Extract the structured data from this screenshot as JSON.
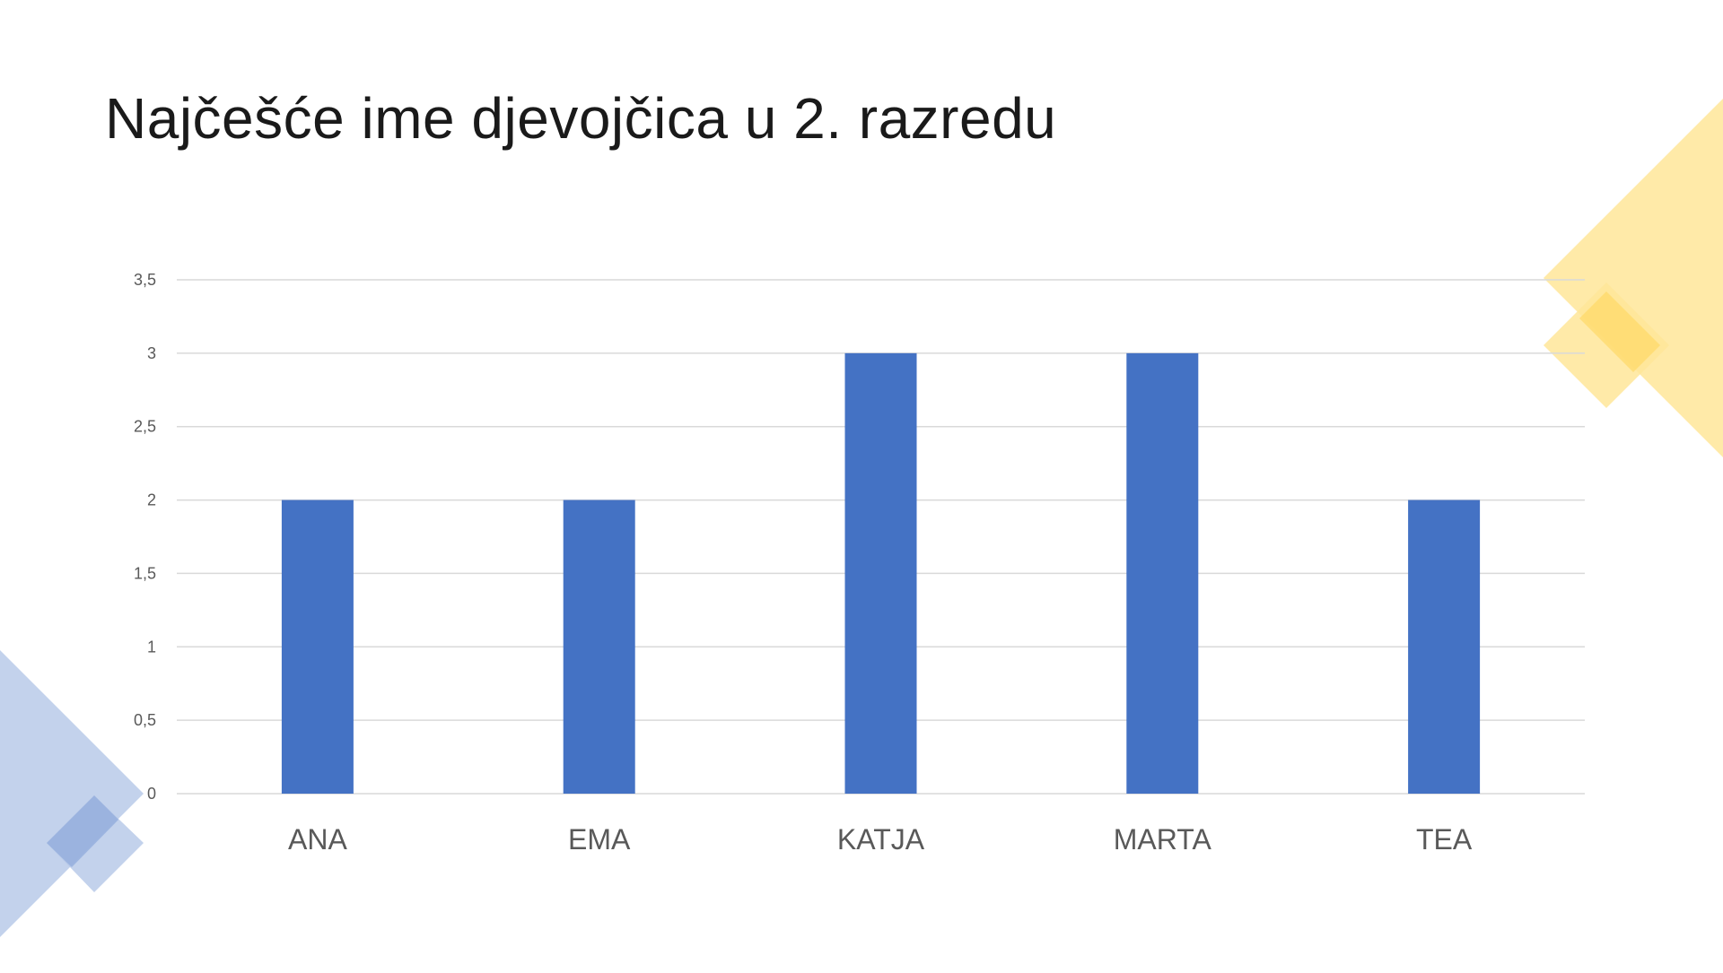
{
  "title": "Najčešće ime djevojčica u 2. razredu",
  "chart_data": {
    "type": "bar",
    "title": "",
    "categories": [
      "ANA",
      "EMA",
      "KATJA",
      "MARTA",
      "TEA"
    ],
    "values": [
      2,
      2,
      3,
      3,
      2
    ],
    "ylim": [
      0,
      3.5
    ],
    "yticks": [
      "0",
      "0,5",
      "1",
      "1,5",
      "2",
      "2,5",
      "3",
      "3,5"
    ],
    "grid": true,
    "legend": "none",
    "bar_color": "#4472C4"
  },
  "decor": {
    "yellow_color": "#FFE699",
    "yellow_accent": "#FFD966",
    "blue_color": "#B4C7E7",
    "blue_accent": "#8FAADC"
  }
}
